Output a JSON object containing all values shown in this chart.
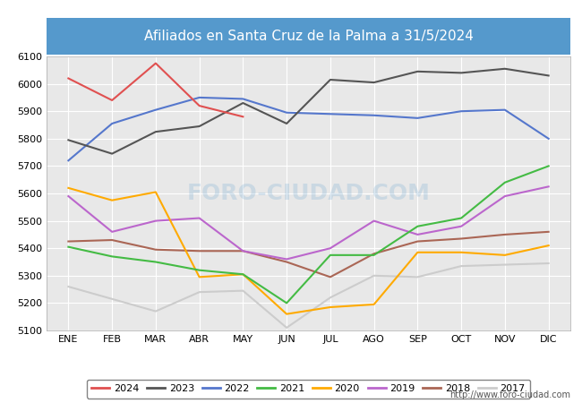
{
  "title": "Afiliados en Santa Cruz de la Palma a 31/5/2024",
  "header_bg": "#5599cc",
  "plot_bg": "#e8e8e8",
  "fig_bg": "#ffffff",
  "xlabel": "",
  "ylabel": "",
  "ylim": [
    5100,
    6100
  ],
  "yticks": [
    5100,
    5200,
    5300,
    5400,
    5500,
    5600,
    5700,
    5800,
    5900,
    6000,
    6100
  ],
  "months": [
    "ENE",
    "FEB",
    "MAR",
    "ABR",
    "MAY",
    "JUN",
    "JUL",
    "AGO",
    "SEP",
    "OCT",
    "NOV",
    "DIC"
  ],
  "watermark": "FORO-CIUDAD.COM",
  "url": "http://www.foro-ciudad.com",
  "series": {
    "2024": {
      "color": "#e05050",
      "data": [
        6020,
        5940,
        6075,
        5920,
        5880,
        null,
        null,
        null,
        null,
        null,
        null,
        null
      ]
    },
    "2023": {
      "color": "#555555",
      "data": [
        5795,
        5745,
        5825,
        5845,
        5930,
        5855,
        6015,
        6005,
        6045,
        6040,
        6055,
        6030
      ]
    },
    "2022": {
      "color": "#5577cc",
      "data": [
        5720,
        5855,
        5905,
        5950,
        5945,
        5895,
        5890,
        5885,
        5875,
        5900,
        5905,
        5800
      ]
    },
    "2021": {
      "color": "#44bb44",
      "data": [
        5405,
        5370,
        5350,
        5320,
        5305,
        5200,
        5375,
        5375,
        5480,
        5510,
        5640,
        5700
      ]
    },
    "2020": {
      "color": "#ffaa00",
      "data": [
        5620,
        5575,
        5605,
        5295,
        5305,
        5160,
        5185,
        5195,
        5385,
        5385,
        5375,
        5410
      ]
    },
    "2019": {
      "color": "#bb66cc",
      "data": [
        5590,
        5460,
        5500,
        5510,
        5390,
        5360,
        5400,
        5500,
        5450,
        5480,
        5590,
        5625
      ]
    },
    "2018": {
      "color": "#aa6655",
      "data": [
        5425,
        5430,
        5395,
        5390,
        5390,
        5350,
        5295,
        5380,
        5425,
        5435,
        5450,
        5460
      ]
    },
    "2017": {
      "color": "#cccccc",
      "data": [
        5260,
        5215,
        5170,
        5240,
        5245,
        5110,
        5220,
        5300,
        5295,
        5335,
        5340,
        5345
      ]
    }
  }
}
